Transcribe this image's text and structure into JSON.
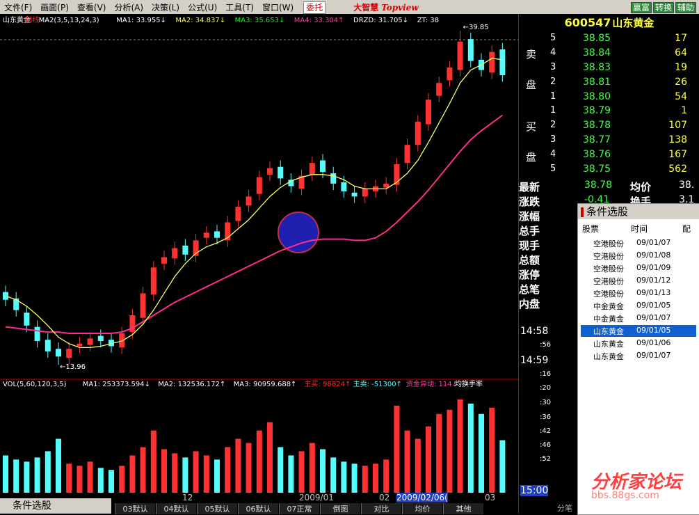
{
  "menu": {
    "items": [
      "文件(F)",
      "画面(P)",
      "查看(V)",
      "分析(A)",
      "决策(L)",
      "公式(U)",
      "工具(T)",
      "窗口(W)"
    ],
    "entrust": "委托",
    "brand": "大智慧",
    "brand_en": "Topview",
    "buttons": [
      "赢富",
      "转换",
      "辅助"
    ]
  },
  "chart": {
    "header": [
      {
        "text": "山东黄金",
        "color": "#ffffff"
      },
      {
        "text": "日线",
        "color": "#ff3030"
      },
      {
        "text": "MA2(3,5,13,24,3)",
        "color": "#ffffff"
      },
      {
        "text": "MA1: 33.955↓",
        "color": "#ffffff"
      },
      {
        "text": "MA2: 34.837↓",
        "color": "#ffff00"
      },
      {
        "text": "MA3: 35.653↓",
        "color": "#00ff00"
      },
      {
        "text": "MA4: 33.304↑",
        "color": "#ff40a0"
      },
      {
        "text": "DRZD: 31.705↓",
        "color": "#ffffff"
      },
      {
        "text": "ZT: 38",
        "color": "#ffffff"
      }
    ],
    "ylim": [
      13,
      40.5
    ],
    "open": [
      19.6,
      19.1,
      18.0,
      16.9,
      15.9,
      15.2,
      14.5,
      15.4,
      15.5,
      16.2,
      15.9,
      15.3,
      16.5,
      17.6,
      19.4,
      21.8,
      22.2,
      23.2,
      22.4,
      23.8,
      24.3,
      23.6,
      25.1,
      26.3,
      27.2,
      28.7,
      29.3,
      28.3,
      27.6,
      28.7,
      29.8,
      28.8,
      28.1,
      27.3,
      27.0,
      27.4,
      27.7,
      27.9,
      29.6,
      31.0,
      32.6,
      34.8,
      36.0,
      36.8,
      39.2,
      37.6,
      36.6,
      38.4
    ],
    "high": [
      20.1,
      19.6,
      18.5,
      17.4,
      16.4,
      15.7,
      15.7,
      16.1,
      16.5,
      16.7,
      16.4,
      16.9,
      18.3,
      20.0,
      22.0,
      22.8,
      23.5,
      23.7,
      24.1,
      24.7,
      24.8,
      25.5,
      26.7,
      27.5,
      29.0,
      29.7,
      29.8,
      28.8,
      29.1,
      30.1,
      30.3,
      29.3,
      28.6,
      27.8,
      28.1,
      28.3,
      28.5,
      30.0,
      31.5,
      33.3,
      35.0,
      36.3,
      37.5,
      39.85,
      39.7,
      38.1,
      38.7,
      38.9
    ],
    "low": [
      18.5,
      17.7,
      16.5,
      15.3,
      14.5,
      13.96,
      14.0,
      14.9,
      15.0,
      15.3,
      14.9,
      14.8,
      16.0,
      17.1,
      18.9,
      21.3,
      21.7,
      22.0,
      21.9,
      23.3,
      23.3,
      23.1,
      24.6,
      25.8,
      26.7,
      28.2,
      27.9,
      27.3,
      27.1,
      28.2,
      28.4,
      27.5,
      26.9,
      26.5,
      26.5,
      26.9,
      27.2,
      27.4,
      29.1,
      30.5,
      32.1,
      34.3,
      35.5,
      36.3,
      37.0,
      36.3,
      36.1,
      35.9
    ],
    "close": [
      19.0,
      18.2,
      17.0,
      15.8,
      15.0,
      14.6,
      15.2,
      15.6,
      16.0,
      15.8,
      15.4,
      16.4,
      17.8,
      19.5,
      21.5,
      22.3,
      23.0,
      22.5,
      23.6,
      24.2,
      23.8,
      25.0,
      26.2,
      27.0,
      28.5,
      29.2,
      28.4,
      27.8,
      28.6,
      29.6,
      28.9,
      28.0,
      27.4,
      27.0,
      27.6,
      27.8,
      28.0,
      29.5,
      31.0,
      32.8,
      34.5,
      35.8,
      37.0,
      39.0,
      37.5,
      36.8,
      38.2,
      36.4
    ],
    "ma5": [
      19.3,
      19.0,
      18.5,
      17.8,
      17.0,
      16.1,
      15.6,
      15.3,
      15.3,
      15.4,
      15.6,
      15.8,
      16.3,
      17.1,
      18.2,
      19.5,
      20.8,
      21.8,
      22.6,
      23.1,
      23.4,
      23.8,
      24.5,
      25.2,
      26.1,
      27.0,
      27.7,
      28.2,
      28.5,
      28.7,
      28.7,
      28.6,
      28.3,
      27.8,
      27.6,
      27.6,
      27.6,
      28.1,
      28.8,
      29.8,
      31.2,
      32.7,
      34.2,
      35.8,
      36.8,
      37.2,
      37.7,
      37.6
    ],
    "ma60": [
      16.9,
      16.8,
      16.7,
      16.6,
      16.5,
      16.5,
      16.4,
      16.4,
      16.4,
      16.4,
      16.4,
      16.5,
      16.8,
      17.3,
      17.8,
      18.3,
      18.8,
      19.2,
      19.6,
      20.0,
      20.4,
      20.8,
      21.2,
      21.6,
      22.0,
      22.4,
      22.8,
      23.1,
      23.4,
      23.6,
      23.7,
      23.7,
      23.7,
      23.6,
      23.6,
      23.8,
      24.3,
      25.0,
      25.8,
      26.6,
      27.5,
      28.5,
      29.5,
      30.5,
      31.4,
      32.1,
      32.7,
      33.3
    ],
    "up_color": "#ff3232",
    "down_color": "#54fcfc",
    "ma5_color": "#ffff66",
    "ma60_color": "#ff2d8c",
    "low_label": "←13.96",
    "high_label": "←39.85",
    "volume": {
      "header": [
        {
          "text": "VOL(5,60,120,3,5)",
          "color": "#ffffff"
        },
        {
          "text": "MA1: 253373.594↓",
          "color": "#ffffff"
        },
        {
          "text": "MA2: 132536.172↑",
          "color": "#ffffff"
        },
        {
          "text": "MA3: 90959.688↑",
          "color": "#ffffff"
        },
        {
          "text": "主买: 98824↑",
          "color": "#ff3030"
        },
        {
          "text": "主卖: -51300↑",
          "color": "#54fcfc"
        },
        {
          "text": "资金异动: 114↓",
          "color": "#ff40a0"
        },
        {
          "text": "均换手率",
          "color": "#ffffff"
        }
      ],
      "ylim": [
        0,
        480000
      ],
      "values": [
        180000,
        160000,
        150000,
        170000,
        200000,
        260000,
        140000,
        130000,
        150000,
        120000,
        110000,
        130000,
        180000,
        220000,
        300000,
        210000,
        190000,
        170000,
        200000,
        180000,
        160000,
        220000,
        260000,
        240000,
        300000,
        340000,
        220000,
        180000,
        200000,
        240000,
        210000,
        170000,
        150000,
        140000,
        130000,
        140000,
        160000,
        420000,
        300000,
        260000,
        320000,
        380000,
        400000,
        450000,
        430000,
        380000,
        410000,
        253373
      ]
    },
    "time_labels": [
      "12",
      "2009/01",
      "02",
      "2009/02/06(",
      "03"
    ],
    "tabs": [
      "03默认",
      "04默认",
      "05默认",
      "06默认",
      "07正常",
      "倒图",
      "对比",
      "均价",
      "其他"
    ]
  },
  "quote": {
    "code": "600547",
    "name": "山东黄金",
    "sell_label": [
      "卖",
      "盘"
    ],
    "buy_label": [
      "买",
      "盘"
    ],
    "sell": [
      {
        "level": "5",
        "price": "38.85",
        "vol": "17"
      },
      {
        "level": "4",
        "price": "38.84",
        "vol": "64"
      },
      {
        "level": "3",
        "price": "38.83",
        "vol": "19"
      },
      {
        "level": "2",
        "price": "38.81",
        "vol": "26"
      },
      {
        "level": "1",
        "price": "38.80",
        "vol": "54"
      }
    ],
    "buy": [
      {
        "level": "1",
        "price": "38.79",
        "vol": "1"
      },
      {
        "level": "2",
        "price": "38.78",
        "vol": "107"
      },
      {
        "level": "3",
        "price": "38.77",
        "vol": "138"
      },
      {
        "level": "4",
        "price": "38.76",
        "vol": "167"
      },
      {
        "level": "5",
        "price": "38.75",
        "vol": "562"
      }
    ],
    "stats": [
      {
        "label": "最新",
        "value": "38.78",
        "label2": "均价",
        "value2": "38."
      },
      {
        "label": "涨跌",
        "value": "-0.41",
        "label2": "换手",
        "value2": "3.1"
      }
    ],
    "labels": [
      "涨幅",
      "总手",
      "现手",
      "总额",
      "涨停",
      "总笔",
      "内盘"
    ],
    "times": [
      "14:58",
      ":56",
      "14:59",
      ":16",
      ":20",
      ":30",
      ":36",
      ":42",
      ":46",
      ":52",
      "15:00"
    ],
    "tab": "分笔"
  },
  "popup": {
    "title": "条件选股",
    "header": [
      "股票",
      "时间",
      "配"
    ],
    "rows": [
      [
        "空港股份",
        "09/01/07"
      ],
      [
        "空港股份",
        "09/01/08"
      ],
      [
        "空港股份",
        "09/01/09"
      ],
      [
        "空港股份",
        "09/01/12"
      ],
      [
        "空港股份",
        "09/01/13"
      ],
      [
        "中金黄金",
        "09/01/05"
      ],
      [
        "中金黄金",
        "09/01/07"
      ],
      [
        "山东黄金",
        "09/01/05"
      ],
      [
        "山东黄金",
        "09/01/06"
      ],
      [
        "山东黄金",
        "09/01/07"
      ]
    ]
  },
  "footer": {
    "panel_title": "条件选股"
  },
  "watermark": {
    "title": "分析家论坛",
    "url": "bbs.88gs.com"
  }
}
